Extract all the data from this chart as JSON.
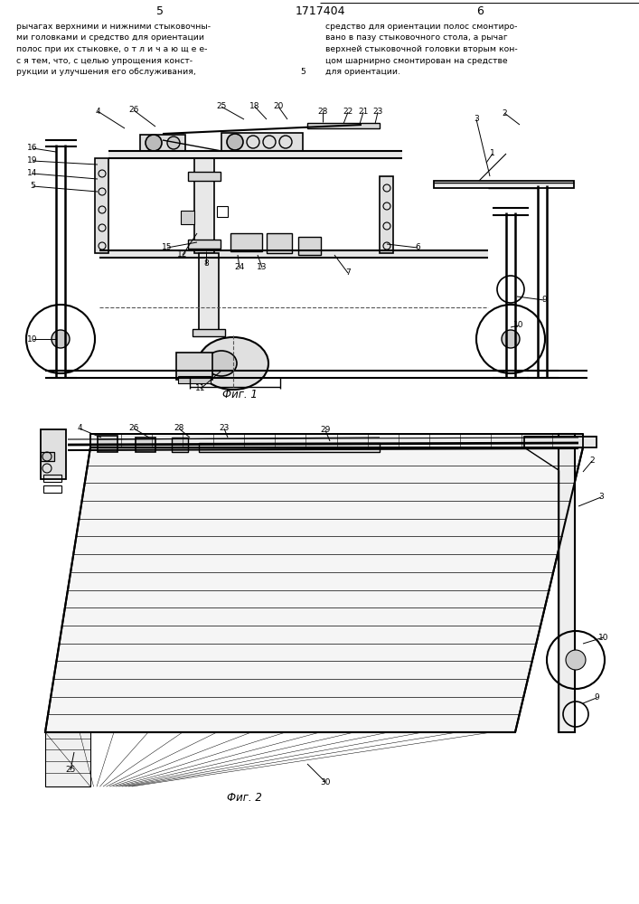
{
  "page_number_left": "5",
  "page_number_center": "1717404",
  "page_number_right": "6",
  "text_left": "рычагах верхними и нижними стыковочны-\nми головками и средство для ориентации\nполос при их стыковке, о т л и ч а ю щ е е-\nс я тем, что, с целью упрощения конст-\nрукции и улучшения его обслуживания,",
  "text_right": "средство для ориентации полос смонтиро-\nвано в пазу стыковочного стола, а рычаг\nверхней стыковочной головки вторым кон-\nцом шарнирно смонтирован на средстве\nдля ориентации.",
  "fig1_caption": "Фиг. 1",
  "fig2_caption": "Фиг. 2",
  "background_color": "#ffffff"
}
